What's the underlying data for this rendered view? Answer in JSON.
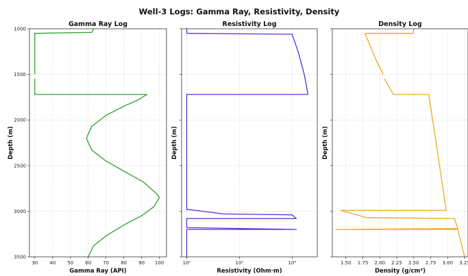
{
  "figure": {
    "title": "Well-3 Logs: Gamma Ray, Resistivity, Density"
  },
  "chart_data": [
    {
      "type": "line",
      "title": "Gamma Ray Log",
      "xlabel": "Gamma Ray (API)",
      "ylabel": "Depth (m)",
      "xlim": [
        27,
        104
      ],
      "ylim": [
        3500,
        1000
      ],
      "xticks": [
        "30",
        "40",
        "50",
        "60",
        "70",
        "80",
        "90",
        "100"
      ],
      "yticks": [
        "1000",
        "1500",
        "2000",
        "2500",
        "3000",
        "3500"
      ],
      "grid": true,
      "color": "#2ca02c",
      "series": [
        {
          "segments": [
            [
              [
                63,
                1000
              ],
              [
                62,
                1040
              ],
              [
                30,
                1050
              ],
              [
                30,
                1500
              ]
            ],
            [
              [
                30,
                1550
              ],
              [
                30,
                1720
              ],
              [
                93,
                1720
              ],
              [
                88,
                1780
              ],
              [
                80,
                1850
              ],
              [
                70,
                1950
              ],
              [
                62,
                2070
              ],
              [
                59,
                2200
              ],
              [
                62,
                2330
              ],
              [
                70,
                2450
              ],
              [
                80,
                2560
              ],
              [
                91,
                2680
              ],
              [
                98,
                2800
              ],
              [
                100,
                2850
              ],
              [
                97,
                2950
              ],
              [
                90,
                3050
              ],
              [
                80,
                3150
              ],
              [
                70,
                3270
              ],
              [
                63,
                3380
              ],
              [
                60,
                3500
              ]
            ]
          ]
        }
      ]
    },
    {
      "type": "line",
      "title": "Resistivity Log",
      "xlabel": "Resistivity (Ohm·m)",
      "ylabel": "Depth (m)",
      "xscale": "log",
      "xlim": [
        8,
        3000
      ],
      "ylim": [
        3500,
        1000
      ],
      "xticks": [
        "10¹",
        "10²",
        "10³"
      ],
      "yticks": [
        "1000",
        "1500",
        "2000",
        "2500",
        "3000",
        "3500"
      ],
      "grid": true,
      "color": "#5b2ed9",
      "series": [
        {
          "segments": [
            [
              [
                10,
                1000
              ],
              [
                10,
                1050
              ],
              [
                1000,
                1060
              ],
              [
                1300,
                1250
              ],
              [
                1700,
                1500
              ],
              [
                2000,
                1720
              ],
              [
                10,
                1720
              ],
              [
                10,
                2980
              ],
              [
                20,
                3000
              ],
              [
                50,
                3030
              ],
              [
                1000,
                3040
              ],
              [
                1200,
                3080
              ],
              [
                10,
                3080
              ],
              [
                10,
                3180
              ],
              [
                1200,
                3200
              ],
              [
                10,
                3200
              ],
              [
                10,
                3500
              ]
            ]
          ]
        }
      ]
    },
    {
      "type": "line",
      "title": "Density Log",
      "xlabel": "Density (g/cm³)",
      "ylabel": "Depth (m)",
      "xlim": [
        1.3,
        3.3
      ],
      "ylim": [
        3500,
        1000
      ],
      "xticks": [
        "1.50",
        "1.75",
        "2.00",
        "2.25",
        "2.50",
        "2.75",
        "3.00",
        "3.25"
      ],
      "yticks": [
        "1000",
        "1500",
        "2000",
        "2500",
        "3000",
        "3500"
      ],
      "grid": true,
      "color": "#f0a81c",
      "series": [
        {
          "segments": [
            [
              [
                2.5,
                1000
              ],
              [
                2.49,
                1050
              ],
              [
                1.78,
                1050
              ],
              [
                1.95,
                1350
              ],
              [
                2.05,
                1500
              ]
            ],
            [
              [
                2.07,
                1550
              ],
              [
                2.2,
                1720
              ],
              [
                2.72,
                1720
              ],
              [
                2.82,
                2200
              ],
              [
                2.92,
                2700
              ],
              [
                2.98,
                2990
              ],
              [
                1.42,
                2990
              ],
              [
                1.8,
                3070
              ],
              [
                3.1,
                3080
              ],
              [
                3.15,
                3190
              ],
              [
                1.35,
                3200
              ],
              [
                3.15,
                3200
              ],
              [
                3.25,
                3500
              ]
            ]
          ]
        }
      ]
    }
  ]
}
